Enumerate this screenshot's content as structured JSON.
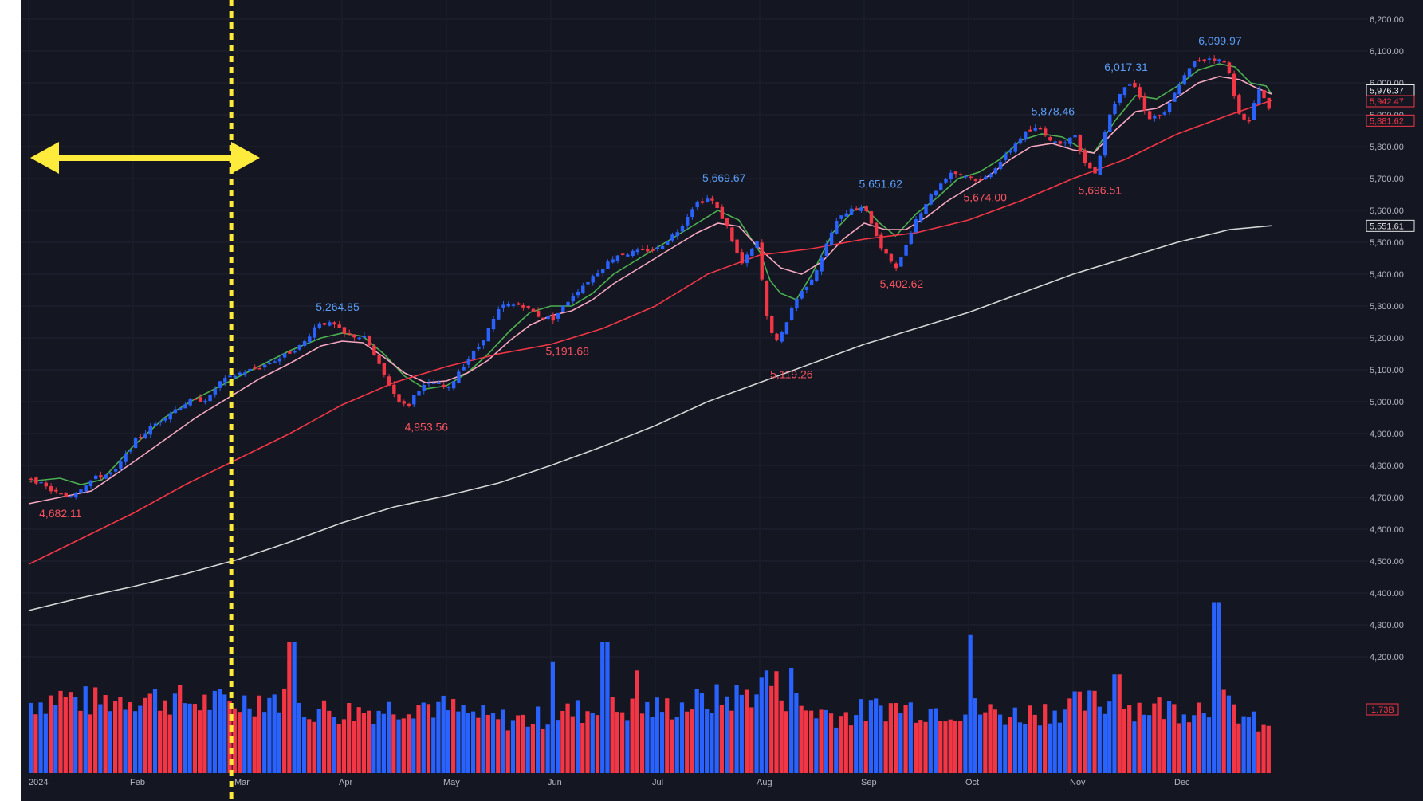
{
  "chart_data": {
    "type": "candlestick",
    "title": "",
    "ylim": [
      4150,
      6250
    ],
    "x_axis_labels": [
      "2024",
      "Feb",
      "Mar",
      "Apr",
      "May",
      "Jun",
      "Jul",
      "Aug",
      "Sep",
      "Oct",
      "Nov",
      "Dec"
    ],
    "y_tick_labels": [
      "6,200.00",
      "6,100.00",
      "6,000.00",
      "5,900.00",
      "5,800.00",
      "5,700.00",
      "5,600.00",
      "5,500.00",
      "5,400.00",
      "5,300.00",
      "5,200.00",
      "5,100.00",
      "5,000.00",
      "4,900.00",
      "4,800.00",
      "4,700.00",
      "4,600.00",
      "4,500.00",
      "4,400.00",
      "4,300.00",
      "4,200.00"
    ],
    "annotations": [
      {
        "label": "4,682.11",
        "type": "low",
        "month": 0.1,
        "value": 4682.11
      },
      {
        "label": "5,264.85",
        "type": "high",
        "month": 2.75,
        "value": 5264.85
      },
      {
        "label": "4,953.56",
        "type": "low",
        "month": 3.6,
        "value": 4953.56
      },
      {
        "label": "5,191.68",
        "type": "low",
        "month": 4.95,
        "value": 5191.68
      },
      {
        "label": "5,669.67",
        "type": "high",
        "month": 6.45,
        "value": 5669.67
      },
      {
        "label": "5,119.26",
        "type": "low",
        "month": 7.1,
        "value": 5119.26
      },
      {
        "label": "5,651.62",
        "type": "high",
        "month": 7.95,
        "value": 5651.62
      },
      {
        "label": "5,402.62",
        "type": "low",
        "month": 8.15,
        "value": 5402.62
      },
      {
        "label": "5,878.46",
        "type": "high",
        "month": 9.6,
        "value": 5878.46
      },
      {
        "label": "5,674.00",
        "type": "low",
        "month": 8.95,
        "value": 5674.0
      },
      {
        "label": "6,017.31",
        "type": "high",
        "month": 10.3,
        "value": 6017.31
      },
      {
        "label": "5,696.51",
        "type": "low",
        "month": 10.05,
        "value": 5696.51
      },
      {
        "label": "6,099.97",
        "type": "high",
        "month": 11.2,
        "value": 6099.97
      }
    ],
    "price_tags": [
      {
        "label": "5,976.37",
        "value": 5976.37,
        "color": "#f0f0f0"
      },
      {
        "label": "5,942.47",
        "value": 5942.47,
        "color": "#f23645"
      },
      {
        "label": "5,881.62",
        "value": 5881.62,
        "color": "#f23645"
      },
      {
        "label": "5,551.61",
        "value": 5551.61,
        "color": "#e0e0e0"
      }
    ],
    "volume_tag": {
      "label": "1.73B",
      "color": "#f23645"
    },
    "moving_averages": [
      {
        "color": "#4caf50",
        "points": [
          [
            0.0,
            4750
          ],
          [
            0.3,
            4760
          ],
          [
            0.5,
            4740
          ],
          [
            0.7,
            4755
          ],
          [
            1.0,
            4860
          ],
          [
            1.3,
            4950
          ],
          [
            1.6,
            5010
          ],
          [
            1.9,
            5060
          ],
          [
            2.2,
            5110
          ],
          [
            2.5,
            5160
          ],
          [
            2.8,
            5200
          ],
          [
            3.0,
            5215
          ],
          [
            3.2,
            5205
          ],
          [
            3.4,
            5150
          ],
          [
            3.6,
            5080
          ],
          [
            3.8,
            5040
          ],
          [
            4.0,
            5050
          ],
          [
            4.2,
            5090
          ],
          [
            4.4,
            5150
          ],
          [
            4.6,
            5220
          ],
          [
            4.8,
            5280
          ],
          [
            5.0,
            5300
          ],
          [
            5.2,
            5300
          ],
          [
            5.4,
            5340
          ],
          [
            5.6,
            5400
          ],
          [
            5.8,
            5440
          ],
          [
            6.0,
            5480
          ],
          [
            6.2,
            5520
          ],
          [
            6.4,
            5560
          ],
          [
            6.6,
            5600
          ],
          [
            6.8,
            5570
          ],
          [
            7.0,
            5470
          ],
          [
            7.1,
            5380
          ],
          [
            7.2,
            5340
          ],
          [
            7.35,
            5320
          ],
          [
            7.5,
            5400
          ],
          [
            7.7,
            5530
          ],
          [
            7.9,
            5600
          ],
          [
            8.0,
            5610
          ],
          [
            8.15,
            5560
          ],
          [
            8.3,
            5520
          ],
          [
            8.5,
            5590
          ],
          [
            8.7,
            5640
          ],
          [
            8.9,
            5700
          ],
          [
            9.1,
            5720
          ],
          [
            9.3,
            5760
          ],
          [
            9.5,
            5820
          ],
          [
            9.7,
            5840
          ],
          [
            9.9,
            5830
          ],
          [
            10.1,
            5790
          ],
          [
            10.2,
            5780
          ],
          [
            10.4,
            5880
          ],
          [
            10.6,
            5960
          ],
          [
            10.8,
            5950
          ],
          [
            11.0,
            5990
          ],
          [
            11.2,
            6040
          ],
          [
            11.4,
            6060
          ],
          [
            11.55,
            6050
          ],
          [
            11.7,
            6000
          ],
          [
            11.85,
            5990
          ],
          [
            11.9,
            5965
          ]
        ]
      },
      {
        "color": "#f7a7c0",
        "points": [
          [
            0.0,
            4680
          ],
          [
            0.3,
            4700
          ],
          [
            0.6,
            4720
          ],
          [
            1.0,
            4810
          ],
          [
            1.3,
            4880
          ],
          [
            1.6,
            4950
          ],
          [
            1.9,
            5010
          ],
          [
            2.2,
            5070
          ],
          [
            2.5,
            5120
          ],
          [
            2.8,
            5175
          ],
          [
            3.0,
            5190
          ],
          [
            3.2,
            5185
          ],
          [
            3.4,
            5140
          ],
          [
            3.6,
            5090
          ],
          [
            3.8,
            5060
          ],
          [
            4.0,
            5065
          ],
          [
            4.2,
            5090
          ],
          [
            4.4,
            5130
          ],
          [
            4.6,
            5190
          ],
          [
            4.8,
            5240
          ],
          [
            5.0,
            5270
          ],
          [
            5.2,
            5285
          ],
          [
            5.4,
            5320
          ],
          [
            5.6,
            5370
          ],
          [
            5.8,
            5410
          ],
          [
            6.0,
            5450
          ],
          [
            6.2,
            5490
          ],
          [
            6.4,
            5530
          ],
          [
            6.6,
            5560
          ],
          [
            6.8,
            5550
          ],
          [
            7.0,
            5480
          ],
          [
            7.2,
            5420
          ],
          [
            7.4,
            5400
          ],
          [
            7.6,
            5440
          ],
          [
            7.8,
            5510
          ],
          [
            8.0,
            5560
          ],
          [
            8.2,
            5540
          ],
          [
            8.4,
            5540
          ],
          [
            8.6,
            5580
          ],
          [
            8.8,
            5630
          ],
          [
            9.0,
            5670
          ],
          [
            9.2,
            5710
          ],
          [
            9.4,
            5760
          ],
          [
            9.6,
            5800
          ],
          [
            9.8,
            5810
          ],
          [
            10.0,
            5790
          ],
          [
            10.2,
            5780
          ],
          [
            10.4,
            5850
          ],
          [
            10.6,
            5910
          ],
          [
            10.8,
            5920
          ],
          [
            11.0,
            5955
          ],
          [
            11.2,
            6000
          ],
          [
            11.4,
            6020
          ],
          [
            11.6,
            6010
          ],
          [
            11.75,
            5985
          ],
          [
            11.9,
            5965
          ]
        ]
      },
      {
        "color": "#f23645",
        "points": [
          [
            0.0,
            4490
          ],
          [
            0.5,
            4570
          ],
          [
            1.0,
            4650
          ],
          [
            1.5,
            4740
          ],
          [
            2.0,
            4820
          ],
          [
            2.5,
            4900
          ],
          [
            3.0,
            4990
          ],
          [
            3.5,
            5060
          ],
          [
            4.0,
            5110
          ],
          [
            4.5,
            5150
          ],
          [
            5.0,
            5180
          ],
          [
            5.5,
            5230
          ],
          [
            6.0,
            5300
          ],
          [
            6.5,
            5400
          ],
          [
            7.0,
            5460
          ],
          [
            7.5,
            5480
          ],
          [
            8.0,
            5510
          ],
          [
            8.5,
            5530
          ],
          [
            9.0,
            5570
          ],
          [
            9.5,
            5630
          ],
          [
            10.0,
            5700
          ],
          [
            10.5,
            5760
          ],
          [
            11.0,
            5840
          ],
          [
            11.5,
            5900
          ],
          [
            11.9,
            5945
          ]
        ]
      },
      {
        "color": "#d6d6d6",
        "points": [
          [
            0.0,
            4345
          ],
          [
            0.5,
            4385
          ],
          [
            1.0,
            4420
          ],
          [
            1.5,
            4460
          ],
          [
            2.0,
            4505
          ],
          [
            2.5,
            4560
          ],
          [
            3.0,
            4620
          ],
          [
            3.5,
            4670
          ],
          [
            4.0,
            4705
          ],
          [
            4.5,
            4745
          ],
          [
            5.0,
            4800
          ],
          [
            5.5,
            4860
          ],
          [
            6.0,
            4925
          ],
          [
            6.5,
            5000
          ],
          [
            7.0,
            5060
          ],
          [
            7.5,
            5120
          ],
          [
            8.0,
            5180
          ],
          [
            8.5,
            5230
          ],
          [
            9.0,
            5280
          ],
          [
            9.5,
            5340
          ],
          [
            10.0,
            5400
          ],
          [
            10.5,
            5450
          ],
          [
            11.0,
            5500
          ],
          [
            11.5,
            5540
          ],
          [
            11.9,
            5552
          ]
        ]
      }
    ],
    "price_path": [
      [
        0.0,
        4760
      ],
      [
        0.2,
        4720
      ],
      [
        0.35,
        4700
      ],
      [
        0.6,
        4760
      ],
      [
        0.8,
        4780
      ],
      [
        1.0,
        4880
      ],
      [
        1.15,
        4920
      ],
      [
        1.3,
        4960
      ],
      [
        1.5,
        5000
      ],
      [
        1.7,
        5010
      ],
      [
        1.8,
        5060
      ],
      [
        2.0,
        5090
      ],
      [
        2.2,
        5110
      ],
      [
        2.4,
        5140
      ],
      [
        2.6,
        5180
      ],
      [
        2.75,
        5250
      ],
      [
        2.9,
        5240
      ],
      [
        3.0,
        5210
      ],
      [
        3.2,
        5200
      ],
      [
        3.35,
        5100
      ],
      [
        3.5,
        5010
      ],
      [
        3.6,
        4980
      ],
      [
        3.7,
        5040
      ],
      [
        3.85,
        5060
      ],
      [
        4.0,
        5040
      ],
      [
        4.1,
        5100
      ],
      [
        4.3,
        5180
      ],
      [
        4.5,
        5300
      ],
      [
        4.7,
        5305
      ],
      [
        4.85,
        5270
      ],
      [
        5.0,
        5260
      ],
      [
        5.2,
        5340
      ],
      [
        5.4,
        5400
      ],
      [
        5.6,
        5460
      ],
      [
        5.8,
        5470
      ],
      [
        6.0,
        5480
      ],
      [
        6.2,
        5540
      ],
      [
        6.35,
        5620
      ],
      [
        6.5,
        5640
      ],
      [
        6.65,
        5560
      ],
      [
        6.8,
        5430
      ],
      [
        6.95,
        5500
      ],
      [
        7.05,
        5250
      ],
      [
        7.15,
        5180
      ],
      [
        7.3,
        5310
      ],
      [
        7.5,
        5400
      ],
      [
        7.7,
        5560
      ],
      [
        7.85,
        5610
      ],
      [
        8.0,
        5600
      ],
      [
        8.15,
        5470
      ],
      [
        8.3,
        5420
      ],
      [
        8.45,
        5560
      ],
      [
        8.6,
        5640
      ],
      [
        8.8,
        5720
      ],
      [
        8.95,
        5710
      ],
      [
        9.1,
        5690
      ],
      [
        9.3,
        5760
      ],
      [
        9.5,
        5840
      ],
      [
        9.65,
        5860
      ],
      [
        9.8,
        5810
      ],
      [
        10.0,
        5830
      ],
      [
        10.1,
        5740
      ],
      [
        10.2,
        5720
      ],
      [
        10.3,
        5880
      ],
      [
        10.45,
        5990
      ],
      [
        10.55,
        6000
      ],
      [
        10.7,
        5890
      ],
      [
        10.85,
        5900
      ],
      [
        11.0,
        6000
      ],
      [
        11.15,
        6070
      ],
      [
        11.3,
        6080
      ],
      [
        11.45,
        6060
      ],
      [
        11.55,
        5920
      ],
      [
        11.65,
        5860
      ],
      [
        11.75,
        5990
      ],
      [
        11.85,
        5920
      ],
      [
        11.9,
        5882
      ]
    ],
    "volume_profile": [
      [
        0.0,
        0.55
      ],
      [
        0.3,
        0.6
      ],
      [
        0.6,
        0.55
      ],
      [
        1.0,
        0.6
      ],
      [
        1.3,
        0.58
      ],
      [
        1.6,
        0.55
      ],
      [
        2.0,
        0.55
      ],
      [
        2.3,
        0.6
      ],
      [
        2.6,
        0.5
      ],
      [
        3.0,
        0.48
      ],
      [
        3.4,
        0.5
      ],
      [
        3.7,
        0.55
      ],
      [
        4.0,
        0.5
      ],
      [
        4.4,
        0.42
      ],
      [
        4.8,
        0.42
      ],
      [
        5.2,
        0.48
      ],
      [
        5.6,
        0.5
      ],
      [
        6.0,
        0.5
      ],
      [
        6.4,
        0.55
      ],
      [
        6.8,
        0.6
      ],
      [
        7.1,
        0.7
      ],
      [
        7.4,
        0.5
      ],
      [
        7.8,
        0.45
      ],
      [
        8.2,
        0.52
      ],
      [
        8.6,
        0.5
      ],
      [
        9.0,
        0.5
      ],
      [
        9.4,
        0.45
      ],
      [
        9.8,
        0.5
      ],
      [
        10.2,
        0.55
      ],
      [
        10.6,
        0.52
      ],
      [
        11.0,
        0.5
      ],
      [
        11.4,
        0.55
      ],
      [
        11.9,
        0.3
      ]
    ],
    "volume_spikes": [
      [
        2.5,
        1.0
      ],
      [
        5.0,
        0.85
      ],
      [
        5.5,
        1.0
      ],
      [
        5.8,
        0.78
      ],
      [
        7.05,
        0.78
      ],
      [
        7.3,
        0.8
      ],
      [
        9.0,
        1.05
      ],
      [
        11.35,
        1.3
      ],
      [
        10.4,
        0.75
      ]
    ]
  }
}
